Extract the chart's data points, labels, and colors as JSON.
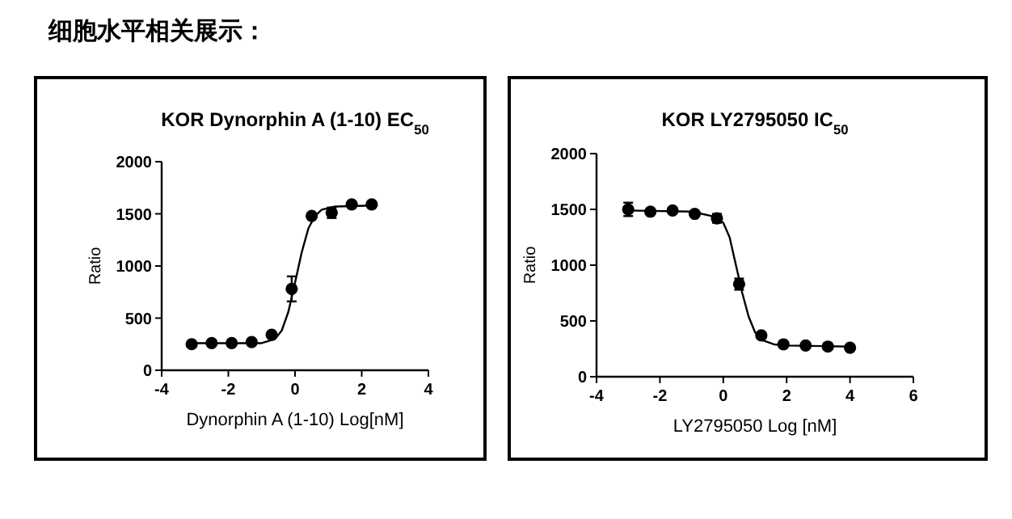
{
  "chart_data": [
    {
      "type": "scatter",
      "title": "KOR Dynorphin A (1-10) EC$_{50}$",
      "xlabel": "Dynorphin A (1-10)  Log[nM]",
      "ylabel": "Ratio",
      "annotations": [
        "细胞水平相关展示："
      ],
      "x": [
        -3.1,
        -2.5,
        -1.9,
        -1.3,
        -0.7,
        -0.1,
        0.5,
        1.1,
        1.7,
        2.3
      ],
      "xlim": [
        -4,
        4
      ],
      "xticks": [
        -4,
        -2,
        0,
        2,
        4
      ],
      "ylim": [
        0,
        2000
      ],
      "yticks": [
        0,
        500,
        1000,
        1500,
        2000
      ],
      "grid": false,
      "series": [
        {
          "marker": "circle",
          "color": "#000000",
          "values": [
            250,
            260,
            260,
            270,
            340,
            780,
            1480,
            1510,
            1590,
            1590
          ],
          "errors": [
            null,
            null,
            null,
            null,
            null,
            120,
            null,
            50,
            null,
            null
          ]
        },
        {
          "type": "line",
          "marker": "none",
          "color": "#000000",
          "x": [
            -3.2,
            -1,
            -0.6,
            -0.4,
            -0.2,
            0,
            0.2,
            0.4,
            0.6,
            0.8,
            1.2,
            2.3
          ],
          "values": [
            260,
            260,
            300,
            380,
            560,
            840,
            1130,
            1360,
            1480,
            1540,
            1570,
            1580
          ]
        }
      ]
    },
    {
      "type": "scatter",
      "title": "KOR LY2795050 IC$_{50}$",
      "xlabel": "LY2795050 Log [nM]",
      "ylabel": "Ratio",
      "x": [
        -3,
        -2.3,
        -1.6,
        -0.9,
        -0.2,
        0.5,
        1.2,
        1.9,
        2.6,
        3.3,
        4.0
      ],
      "xlim": [
        -4,
        6
      ],
      "xticks": [
        -4,
        -2,
        0,
        2,
        4,
        6
      ],
      "ylim": [
        0,
        2000
      ],
      "yticks": [
        0,
        500,
        1000,
        1500,
        2000
      ],
      "grid": false,
      "series": [
        {
          "marker": "circle",
          "color": "#000000",
          "values": [
            1500,
            1480,
            1490,
            1460,
            1420,
            830,
            370,
            290,
            280,
            270,
            260
          ],
          "errors": [
            60,
            null,
            null,
            null,
            40,
            50,
            null,
            null,
            null,
            null,
            null
          ]
        },
        {
          "type": "line",
          "marker": "none",
          "color": "#000000",
          "x": [
            -3,
            -1,
            -0.2,
            0,
            0.2,
            0.4,
            0.6,
            0.8,
            1.0,
            1.2,
            1.6,
            2,
            4
          ],
          "values": [
            1490,
            1480,
            1430,
            1380,
            1250,
            1000,
            750,
            540,
            400,
            330,
            290,
            280,
            270
          ]
        }
      ]
    }
  ]
}
